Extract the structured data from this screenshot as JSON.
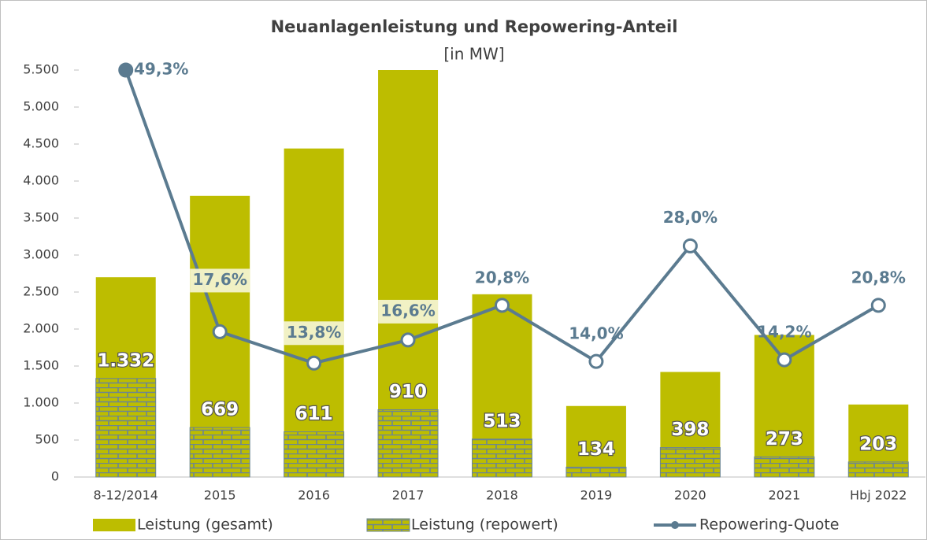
{
  "chart_data": {
    "type": "bar-line",
    "title": "Neuanlagenleistung und Repowering-Anteil",
    "subtitle": "[in MW]",
    "categories": [
      "8-12/2014",
      "2015",
      "2016",
      "2017",
      "2018",
      "2019",
      "2020",
      "2021",
      "Hbj 2022"
    ],
    "series": [
      {
        "name": "Leistung (gesamt)",
        "color": "#bdbd00",
        "values": [
          2700,
          3800,
          4440,
          5500,
          2470,
          960,
          1420,
          1920,
          980
        ]
      },
      {
        "name": "Leistung (repowert)",
        "color": "#bdbd00",
        "values": [
          1332,
          669,
          611,
          910,
          513,
          134,
          398,
          273,
          203
        ],
        "value_labels": [
          "1.332",
          "669",
          "611",
          "910",
          "513",
          "134",
          "398",
          "273",
          "203"
        ]
      },
      {
        "name": "Repowering-Quote",
        "color": "#5b7b90",
        "axis": "y2",
        "values": [
          49.3,
          17.6,
          13.8,
          16.6,
          20.8,
          14.0,
          28.0,
          14.2,
          20.8
        ],
        "value_labels": [
          "49,3%",
          "17,6%",
          "13,8%",
          "16,6%",
          "20,8%",
          "14,0%",
          "28,0%",
          "14,2%",
          "20,8%"
        ]
      }
    ],
    "ylim": [
      0,
      5500
    ],
    "yticks": [
      0,
      500,
      {
        "value": 1000,
        "label": "1.000"
      },
      {
        "value": 1500,
        "label": "1.500"
      },
      {
        "value": 2000,
        "label": "2.000"
      },
      {
        "value": 2500,
        "label": "2.500"
      },
      {
        "value": 3000,
        "label": "3.000"
      },
      {
        "value": 3500,
        "label": "3.500"
      },
      {
        "value": 4000,
        "label": "4.000"
      },
      {
        "value": 4500,
        "label": "4.500"
      },
      {
        "value": 5000,
        "label": "5.000"
      },
      {
        "value": 5500,
        "label": "5.500"
      }
    ],
    "y2lim": [
      0,
      49.3
    ],
    "grid": false
  }
}
